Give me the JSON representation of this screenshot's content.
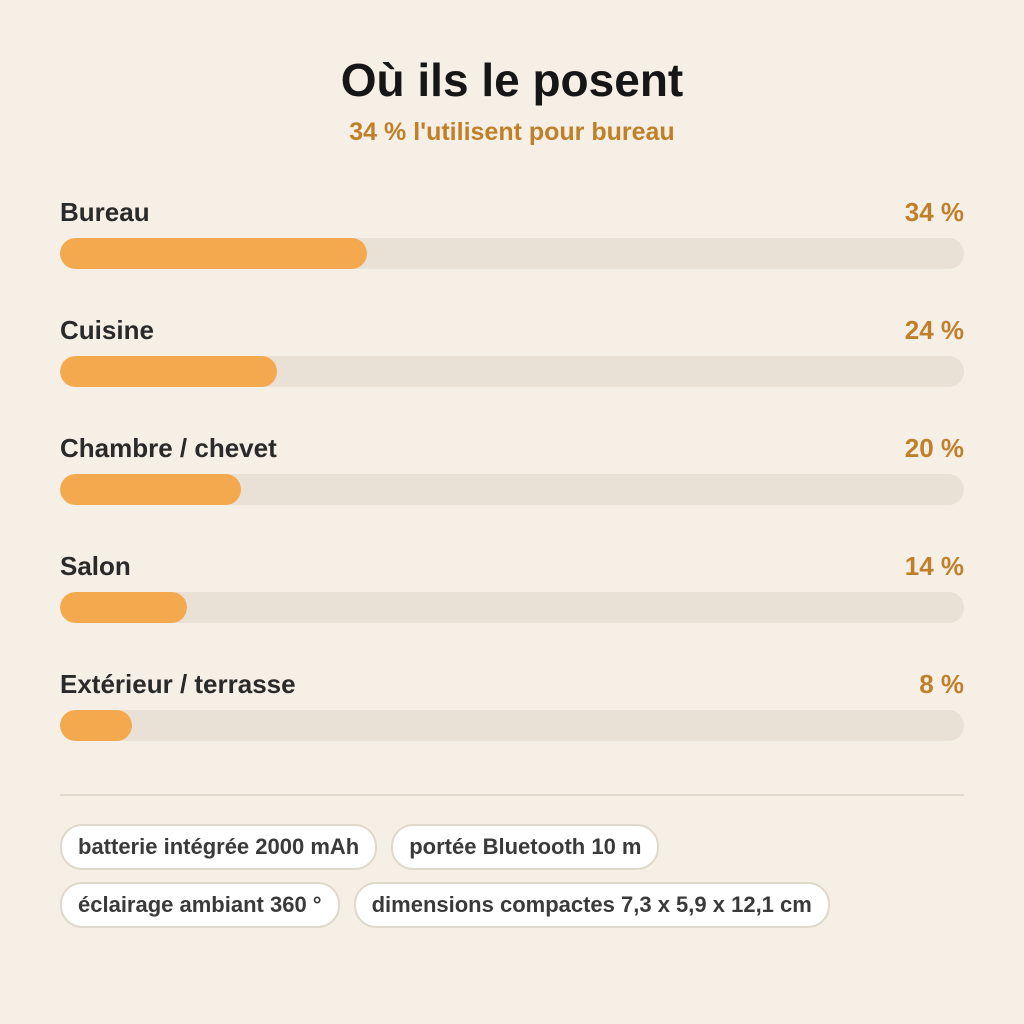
{
  "header": {
    "title": "Où ils le posent",
    "subtitle": "34 % l'utilisent pour bureau"
  },
  "colors": {
    "background": "#f5efe6",
    "accent": "#c0802a",
    "bar_fill": "#f4a94e",
    "bar_track": "#e9e1d6"
  },
  "chart_data": {
    "type": "bar",
    "orientation": "horizontal",
    "title": "Où ils le posent",
    "subtitle": "34 % l'utilisent pour bureau",
    "xlim": [
      0,
      100
    ],
    "categories": [
      "Bureau",
      "Cuisine",
      "Chambre / chevet",
      "Salon",
      "Extérieur / terrasse"
    ],
    "values": [
      34,
      24,
      20,
      14,
      8
    ],
    "value_labels": [
      "34 %",
      "24 %",
      "20 %",
      "14 %",
      "8 %"
    ]
  },
  "tags": [
    [
      "batterie intégrée 2000 mAh",
      "portée Bluetooth 10 m"
    ],
    [
      "éclairage ambiant 360 °",
      "dimensions compactes 7,3 x 5,9 x 12,1 cm"
    ]
  ]
}
